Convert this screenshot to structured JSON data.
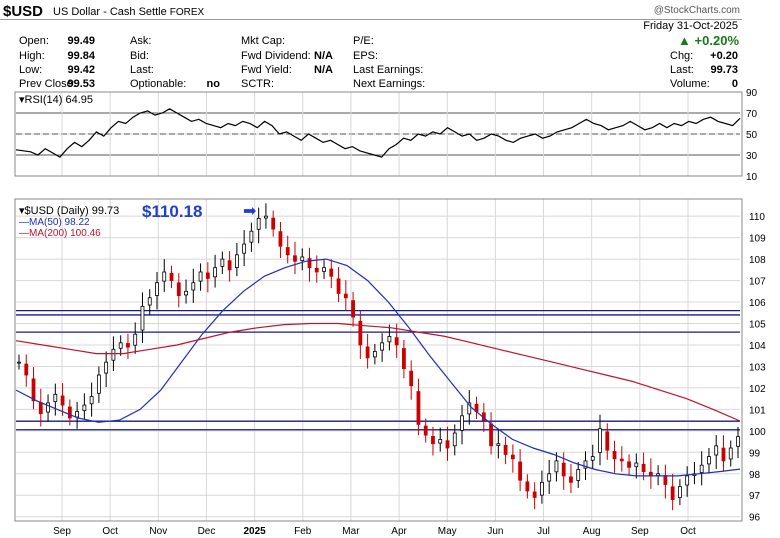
{
  "header": {
    "symbol": "$USD",
    "name": "US Dollar - Cash Settle",
    "exchange": "FOREX",
    "watermark": "@StockCharts.com",
    "date": "Friday  31-Oct-2025",
    "pct_change": "+0.20%",
    "arrow": "▲"
  },
  "quote": {
    "open_label": "Open:",
    "open": "99.49",
    "high_label": "High:",
    "high": "99.84",
    "low_label": "Low:",
    "low": "99.42",
    "prev_label": "Prev Close:",
    "prev": "99.53",
    "ask_label": "Ask:",
    "bid_label": "Bid:",
    "last_label": "Last:",
    "optionable_label": "Optionable:",
    "optionable": "no",
    "mktcap_label": "Mkt Cap:",
    "fwddiv_label": "Fwd Dividend:",
    "fwddiv": "N/A",
    "fwdyield_label": "Fwd Yield:",
    "fwdyield": "N/A",
    "sctr_label": "SCTR:",
    "pe_label": "P/E:",
    "eps_label": "EPS:",
    "lastearn_label": "Last Earnings:",
    "nextearn_label": "Next Earnings:",
    "chg_label": "Chg:",
    "chg": "+0.20",
    "last2_label": "Last:",
    "last2": "99.73",
    "volume_label": "Volume:",
    "volume": "0"
  },
  "colors": {
    "up": "#1a7a1a",
    "bull": "#000000",
    "bear": "#cc0000",
    "ma50": "#1f2fb8",
    "ma200": "#c0142a",
    "hline": "#1a1a8a",
    "grid": "#d8d8d8",
    "rsi": "#000000",
    "annotation": "#1f3fd0"
  },
  "chart_data": [
    {
      "type": "line",
      "title": "RSI(14) 64.95",
      "indicator": "RSI",
      "period": 14,
      "last": 64.95,
      "ylim": [
        10,
        90
      ],
      "yticks": [
        10,
        30,
        50,
        70,
        90
      ],
      "reference_levels": [
        30,
        50,
        70
      ],
      "values": [
        35,
        34,
        33,
        30,
        36,
        32,
        28,
        36,
        42,
        38,
        44,
        52,
        48,
        56,
        62,
        60,
        66,
        70,
        72,
        68,
        70,
        74,
        70,
        66,
        62,
        64,
        60,
        58,
        56,
        60,
        58,
        62,
        60,
        56,
        62,
        58,
        50,
        52,
        48,
        44,
        50,
        46,
        42,
        44,
        40,
        36,
        38,
        34,
        32,
        30,
        28,
        36,
        40,
        46,
        44,
        50,
        48,
        52,
        50,
        56,
        52,
        48,
        50,
        44,
        46,
        50,
        48,
        44,
        42,
        46,
        48,
        50,
        46,
        48,
        52,
        54,
        56,
        60,
        64,
        60,
        58,
        54,
        56,
        58,
        62,
        58,
        54,
        56,
        60,
        56,
        60,
        58,
        62,
        60,
        64,
        66,
        62,
        60,
        58,
        64.95
      ]
    },
    {
      "type": "candlestick",
      "title": "$USD (Daily) 99.73",
      "ylim": [
        95.8,
        110.8
      ],
      "yticks": [
        96,
        97,
        98,
        99,
        100,
        101,
        102,
        103,
        104,
        105,
        106,
        107,
        108,
        109,
        110
      ],
      "x_ticks": [
        "Sep",
        "Oct",
        "Nov",
        "Dec",
        "2025",
        "Feb",
        "Mar",
        "Apr",
        "May",
        "Jun",
        "Jul",
        "Aug",
        "Sep",
        "Oct"
      ],
      "horizontal_lines": [
        100.05,
        100.45,
        104.6,
        105.4,
        105.6
      ],
      "annotation": {
        "label": "$110.18",
        "value": 110.18
      },
      "series": [
        {
          "name": "$USD",
          "values": [
            103.2,
            102.6,
            101.4,
            100.8,
            101.3,
            101.7,
            101.2,
            100.6,
            100.9,
            101.2,
            101.6,
            102.6,
            103.2,
            103.8,
            104.1,
            103.9,
            104.5,
            105.8,
            106.2,
            106.9,
            107.4,
            107.0,
            106.3,
            106.5,
            106.9,
            107.4,
            107.1,
            107.6,
            108.0,
            107.5,
            108.2,
            108.7,
            109.3,
            109.9,
            110.0,
            109.4,
            108.6,
            108.2,
            107.9,
            108.1,
            107.6,
            107.4,
            107.6,
            107.2,
            106.4,
            106.2,
            105.3,
            104.0,
            103.4,
            103.7,
            104.1,
            104.4,
            104.0,
            102.9,
            102.1,
            100.3,
            99.8,
            99.4,
            99.6,
            99.2,
            99.9,
            100.7,
            101.3,
            100.9,
            100.5,
            99.3,
            99.4,
            98.9,
            98.7,
            97.7,
            97.2,
            96.9,
            97.6,
            98.0,
            98.6,
            97.9,
            97.6,
            98.2,
            98.6,
            98.8,
            100.1,
            99.1,
            98.7,
            98.6,
            98.3,
            98.5,
            98.1,
            97.9,
            98.0,
            97.5,
            96.8,
            97.4,
            97.9,
            98.0,
            98.4,
            98.8,
            99.3,
            98.6,
            99.2,
            99.73
          ]
        },
        {
          "name": "MA(50) 98.22",
          "values": [
            101.9,
            101.4,
            101.0,
            100.6,
            100.4,
            100.5,
            101.0,
            101.9,
            103.2,
            104.5,
            105.6,
            106.5,
            107.2,
            107.6,
            107.9,
            108.0,
            107.7,
            107.0,
            106.0,
            104.8,
            103.5,
            102.3,
            101.1,
            100.3,
            99.6,
            99.2,
            98.9,
            98.5,
            98.2,
            98.0,
            97.9,
            97.9,
            97.9,
            98.0,
            98.1,
            98.22
          ]
        },
        {
          "name": "MA(200) 100.46",
          "values": [
            104.2,
            104.0,
            103.8,
            103.6,
            103.6,
            103.8,
            104.0,
            104.3,
            104.6,
            104.8,
            104.95,
            105.0,
            105.0,
            104.9,
            104.8,
            104.6,
            104.4,
            104.1,
            103.8,
            103.5,
            103.2,
            102.9,
            102.6,
            102.3,
            101.9,
            101.5,
            101.0,
            100.46
          ]
        }
      ]
    }
  ]
}
